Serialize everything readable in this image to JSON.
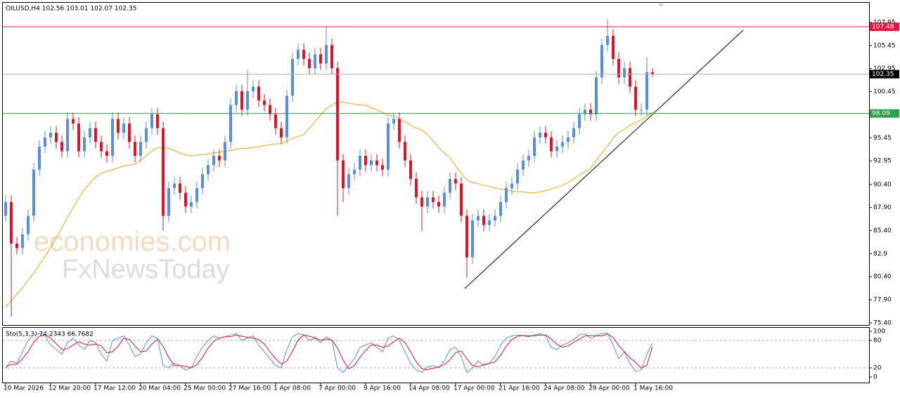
{
  "chart_data": {
    "type": "candlestick",
    "title": "OILUSD,H4  102.56 103.01 102.07 102.35",
    "watermark": [
      "economies.com",
      "FxNewsToday"
    ],
    "categories": [
      "10 Mar 2026",
      null,
      null,
      null,
      null,
      null,
      null,
      null,
      "12 Mar 20:00",
      null,
      null,
      null,
      null,
      null,
      null,
      null,
      "17 Mar 12:00",
      null,
      null,
      null,
      null,
      null,
      null,
      null,
      "20 Mar 04:00",
      null,
      null,
      null,
      null,
      null,
      null,
      null,
      "25 Mar 00:00",
      null,
      null,
      null,
      null,
      null,
      null,
      null,
      "27 Mar 16:00",
      null,
      null,
      null,
      null,
      null,
      null,
      null,
      "1 Apr 08:00",
      null,
      null,
      null,
      null,
      null,
      null,
      null,
      "7 Apr 00:00",
      null,
      null,
      null,
      null,
      null,
      null,
      null,
      "9 Apr 16:00",
      null,
      null,
      null,
      null,
      null,
      null,
      null,
      "14 Apr 08:00",
      null,
      null,
      null,
      null,
      null,
      null,
      null,
      "17 Apr 00:00",
      null,
      null,
      null,
      null,
      null,
      null,
      null,
      "21 Apr 16:00",
      null,
      null,
      null,
      null,
      null,
      null,
      null,
      "24 Apr 08:00",
      null,
      null,
      null,
      null,
      null,
      null,
      null,
      "29 Apr 00:00",
      null,
      null,
      null,
      null,
      null,
      null,
      null,
      "1 May 16:00",
      null,
      null,
      null
    ],
    "open": [
      87,
      88.5,
      84,
      83.5,
      85,
      87,
      92,
      94.5,
      95.5,
      96,
      95,
      94,
      97.5,
      97,
      94,
      95.5,
      96.5,
      95,
      94,
      93.5,
      97.5,
      96,
      97,
      95,
      93.5,
      95,
      96.5,
      98,
      96.5,
      87,
      90,
      90.5,
      89.5,
      88,
      88.5,
      90,
      91.5,
      92.5,
      93.5,
      93,
      95,
      99,
      100.5,
      98.5,
      100.5,
      101,
      99.5,
      99,
      98,
      96.5,
      95.5,
      100,
      104,
      105,
      104,
      103,
      104.5,
      103.5,
      105.5,
      103,
      93,
      90,
      91.5,
      92,
      93.5,
      92.5,
      93,
      92.5,
      92,
      97,
      97.5,
      95,
      93,
      91,
      89,
      88,
      89,
      88.5,
      88,
      89.5,
      91,
      90.5,
      87,
      82.5,
      86.5,
      87,
      86,
      86.5,
      87,
      88.5,
      90,
      90.5,
      92,
      93,
      93.5,
      95.5,
      96,
      95.5,
      94,
      94.5,
      95,
      95.5,
      96.5,
      98,
      98.5,
      98,
      102,
      105.5,
      106.5,
      104,
      102,
      103,
      101,
      98.5,
      98.5,
      102.56
    ],
    "high": [
      89.2,
      89.2,
      84.7,
      85.7,
      87.7,
      92.7,
      95.2,
      96.2,
      96.7,
      96.7,
      95.7,
      98.2,
      98.2,
      97.7,
      96.2,
      97.2,
      97.2,
      95.7,
      94.7,
      98.2,
      98.2,
      97.7,
      97.7,
      95.7,
      95.7,
      97.2,
      98.7,
      98.7,
      97.2,
      90.7,
      91.2,
      91.2,
      90.2,
      89.2,
      90.7,
      92.2,
      93.2,
      94.2,
      94.2,
      95.7,
      99.7,
      101.2,
      101.2,
      102.8,
      101.7,
      101.7,
      100.2,
      99.7,
      98.7,
      97.2,
      100.7,
      104.7,
      105.7,
      105.7,
      104.7,
      105.2,
      105.2,
      107.5,
      106.2,
      103.7,
      93.7,
      92.2,
      92.7,
      94.2,
      94.2,
      93.7,
      93.7,
      93.2,
      97.7,
      98.2,
      98.2,
      95.7,
      93.7,
      91.7,
      89.7,
      89.7,
      89.7,
      89.2,
      90.2,
      91.7,
      91.7,
      91.2,
      87.7,
      87.2,
      87.7,
      87.7,
      87.2,
      87.7,
      89.2,
      90.7,
      91.2,
      92.7,
      93.7,
      94.2,
      96.2,
      96.7,
      96.7,
      96.2,
      95.2,
      95.7,
      96.2,
      97.2,
      98.7,
      99.2,
      99.2,
      102.7,
      106.2,
      108.3,
      107.2,
      104.7,
      103.7,
      103.7,
      101.7,
      99.2,
      104.2,
      103.01
    ],
    "low": [
      86.3,
      76.1,
      82.8,
      82.8,
      84.3,
      86.3,
      91.3,
      93.8,
      94.8,
      94.3,
      93.3,
      93.3,
      96.3,
      93.3,
      93.3,
      94.8,
      94.3,
      93.3,
      92.8,
      92.8,
      95.3,
      95.3,
      94.3,
      92.8,
      92.8,
      94.3,
      95.8,
      95.8,
      85.4,
      86.3,
      89.3,
      88.8,
      87.3,
      87.3,
      87.8,
      89.3,
      90.8,
      91.8,
      92.3,
      92.3,
      94.3,
      98.3,
      97.8,
      97.8,
      99.8,
      98.8,
      98.3,
      97.3,
      95.8,
      94.8,
      94.8,
      99.3,
      103.3,
      103.3,
      102.3,
      102.3,
      102.8,
      102.8,
      102.3,
      87,
      88.5,
      89.3,
      90.8,
      91.3,
      91.8,
      91.8,
      91.8,
      91.3,
      91.3,
      96.3,
      94.3,
      92.3,
      90.3,
      88.3,
      85.3,
      87.3,
      87.8,
      87.3,
      87.3,
      88.8,
      89.8,
      86.3,
      80.3,
      81.8,
      85.8,
      85.3,
      85.3,
      85.8,
      86.3,
      87.8,
      89.3,
      89.8,
      91.3,
      92.3,
      92.8,
      94.8,
      94.8,
      93.3,
      93.3,
      93.8,
      94.3,
      94.8,
      95.8,
      97.3,
      97.3,
      97.3,
      101.3,
      104.8,
      103.3,
      101.3,
      101.3,
      100.3,
      97.8,
      97.8,
      97.8,
      102.07
    ],
    "close": [
      88.5,
      84,
      83.5,
      85,
      87,
      92,
      94.5,
      95.5,
      96,
      95,
      94,
      97.5,
      97,
      94,
      95.5,
      96.5,
      95,
      94,
      93.5,
      97.5,
      96,
      97,
      95,
      93.5,
      95,
      96.5,
      98,
      96.5,
      87,
      90,
      90.5,
      89.5,
      88,
      88.5,
      90,
      91.5,
      92.5,
      93.5,
      93,
      95,
      99,
      100.5,
      98.5,
      100.5,
      101,
      99.5,
      99,
      98,
      96.5,
      95.5,
      100,
      104,
      105,
      104,
      103,
      104.5,
      103.5,
      105.5,
      103,
      93,
      90,
      91.5,
      92,
      93.5,
      92.5,
      93,
      92.5,
      92,
      97,
      97.5,
      95,
      93,
      91,
      89,
      88,
      89,
      88.5,
      88,
      89.5,
      91,
      90.5,
      87,
      82.5,
      86.5,
      87,
      86,
      86.5,
      87,
      88.5,
      90,
      90.5,
      92,
      93,
      93.5,
      95.5,
      96,
      95.5,
      94,
      94.5,
      95,
      95.5,
      96.5,
      98,
      98.5,
      98,
      102,
      105.5,
      106.5,
      104,
      102,
      103,
      101,
      98.5,
      98.5,
      102.56,
      102.35
    ],
    "up_color": "#5b8ed8",
    "down_color": "#d9142b",
    "ma": {
      "color": "#e8a317",
      "values": [
        77.1,
        77.8,
        78.5,
        79.2,
        80.0,
        80.8,
        81.7,
        82.6,
        83.6,
        84.6,
        85.7,
        86.8,
        87.9,
        88.9,
        89.8,
        90.6,
        91.2,
        91.6,
        91.8,
        92.0,
        92.2,
        92.4,
        92.5,
        92.6,
        93.0,
        93.5,
        94.0,
        94.4,
        94.4,
        94.3,
        94.1,
        93.8,
        93.6,
        93.5,
        93.6,
        93.6,
        93.7,
        93.8,
        93.9,
        94.0,
        94.1,
        94.2,
        94.3,
        94.3,
        94.4,
        94.5,
        94.6,
        94.7,
        94.8,
        94.8,
        95.1,
        95.4,
        95.6,
        95.8,
        96.5,
        97.2,
        97.9,
        98.6,
        99.0,
        99.4,
        99.3,
        99.2,
        99.1,
        99.0,
        99.0,
        98.7,
        98.5,
        98.2,
        97.9,
        97.8,
        97.5,
        97.2,
        96.8,
        96.5,
        96.3,
        95.8,
        95.1,
        94.4,
        93.8,
        93.3,
        92.4,
        91.6,
        90.9,
        90.6,
        90.5,
        90.3,
        90.2,
        90.0,
        89.9,
        89.8,
        89.7,
        89.6,
        89.6,
        89.5,
        89.5,
        89.6,
        89.7,
        89.9,
        90.1,
        90.3,
        90.6,
        91.0,
        91.4,
        91.8,
        92.1,
        93.0,
        93.8,
        94.6,
        95.4,
        96.0,
        96.4,
        96.8,
        97.1,
        97.4,
        97.8,
        98.2
      ]
    },
    "ylim": [
      75.17,
      110.08
    ],
    "yticks": [
      {
        "value": 75.4,
        "label": "75.40"
      },
      {
        "value": 77.9,
        "label": "77.90"
      },
      {
        "value": 80.4,
        "label": "80.40"
      },
      82.9,
      {
        "value": 85.4,
        "label": "85.40"
      },
      {
        "value": 87.9,
        "label": "87.90"
      },
      {
        "value": 90.4,
        "label": "90.40"
      },
      92.95,
      95.45,
      97.95,
      100.45,
      102.95,
      105.45,
      107.95
    ],
    "levels": [
      {
        "value": 107.48,
        "color": "#e0143c"
      },
      {
        "value": 102.35,
        "color": "#000000"
      },
      {
        "value": 98.09,
        "color": "#2e9e4f"
      }
    ],
    "oscillator": {
      "label": "Sto(5,3,3) 74.2343 66.7682",
      "ylim": [
        -12.3,
        107.7
      ],
      "yticks": [
        0,
        20,
        80,
        100
      ],
      "levels": [
        20,
        80
      ],
      "series": [
        {
          "color": "#5b8ed8",
          "values": [
            20,
            35,
            30,
            55,
            80,
            92,
            95,
            90,
            70,
            60,
            50,
            75,
            85,
            70,
            60,
            80,
            75,
            50,
            35,
            80,
            85,
            90,
            70,
            45,
            50,
            75,
            90,
            85,
            25,
            20,
            30,
            25,
            15,
            20,
            45,
            65,
            80,
            90,
            85,
            88,
            92,
            95,
            80,
            85,
            90,
            70,
            55,
            40,
            25,
            20,
            60,
            88,
            95,
            92,
            80,
            85,
            75,
            88,
            80,
            20,
            10,
            25,
            40,
            65,
            70,
            75,
            65,
            55,
            85,
            90,
            80,
            55,
            30,
            15,
            10,
            22,
            25,
            20,
            35,
            60,
            65,
            45,
            10,
            20,
            35,
            25,
            30,
            45,
            70,
            85,
            90,
            92,
            90,
            88,
            92,
            95,
            90,
            65,
            60,
            70,
            75,
            82,
            92,
            95,
            85,
            90,
            95,
            96,
            70,
            40,
            55,
            30,
            12,
            15,
            50,
            74.2343
          ]
        },
        {
          "color": "#d9142b",
          "values": [
            22,
            27,
            28,
            40,
            55,
            76,
            89,
            92,
            85,
            73,
            60,
            62,
            70,
            77,
            72,
            70,
            72,
            68,
            53,
            55,
            67,
            85,
            82,
            68,
            55,
            57,
            72,
            83,
            67,
            43,
            25,
            25,
            23,
            20,
            27,
            43,
            63,
            78,
            85,
            88,
            88,
            92,
            89,
            87,
            85,
            82,
            72,
            55,
            40,
            28,
            35,
            56,
            81,
            92,
            89,
            86,
            80,
            83,
            81,
            63,
            37,
            18,
            25,
            43,
            58,
            70,
            70,
            65,
            68,
            77,
            85,
            75,
            55,
            33,
            18,
            16,
            19,
            22,
            27,
            38,
            53,
            57,
            40,
            25,
            22,
            27,
            30,
            33,
            48,
            67,
            82,
            89,
            91,
            90,
            90,
            92,
            92,
            83,
            72,
            65,
            68,
            76,
            83,
            90,
            91,
            90,
            90,
            94,
            87,
            69,
            55,
            42,
            32,
            19,
            26,
            66.7682
          ]
        }
      ]
    }
  }
}
